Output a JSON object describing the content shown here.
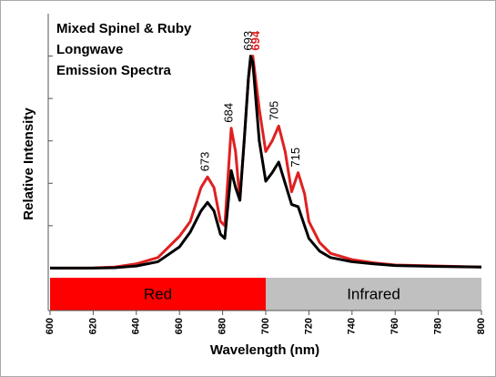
{
  "chart_data": {
    "type": "line",
    "title_lines": [
      "Mixed Spinel & Ruby",
      "Longwave",
      "Emission Spectra"
    ],
    "xlabel": "Wavelength (nm)",
    "ylabel": "Relative Intensity",
    "x": [
      600,
      620,
      630,
      640,
      650,
      660,
      665,
      670,
      673,
      676,
      679,
      681,
      684,
      686,
      688,
      690,
      692,
      693,
      694,
      697,
      700,
      703,
      706,
      709,
      712,
      715,
      718,
      720,
      725,
      730,
      740,
      750,
      760,
      780,
      800
    ],
    "series": [
      {
        "color": "#e02020",
        "values": [
          0,
          0.001,
          0.005,
          0.02,
          0.05,
          0.15,
          0.22,
          0.38,
          0.43,
          0.38,
          0.22,
          0.2,
          0.66,
          0.55,
          0.32,
          0.6,
          0.9,
          0.97,
          1.0,
          0.75,
          0.55,
          0.6,
          0.67,
          0.55,
          0.36,
          0.45,
          0.35,
          0.22,
          0.12,
          0.07,
          0.04,
          0.025,
          0.015,
          0.01,
          0.005
        ]
      },
      {
        "color": "#000000",
        "values": [
          0,
          0,
          0.002,
          0.01,
          0.03,
          0.1,
          0.17,
          0.27,
          0.31,
          0.27,
          0.16,
          0.14,
          0.46,
          0.38,
          0.32,
          0.6,
          0.9,
          1.0,
          0.97,
          0.6,
          0.41,
          0.45,
          0.5,
          0.4,
          0.3,
          0.29,
          0.2,
          0.14,
          0.08,
          0.05,
          0.03,
          0.02,
          0.012,
          0.008,
          0.005
        ]
      }
    ],
    "annotations": [
      {
        "x": 673,
        "color": "#000000"
      },
      {
        "x": 684,
        "color": "#000000"
      },
      {
        "x": 693,
        "color": "#000000"
      },
      {
        "x": 694,
        "color": "#e02020"
      },
      {
        "x": 705,
        "color": "#000000"
      },
      {
        "x": 715,
        "color": "#000000"
      }
    ],
    "bands": [
      {
        "label": "Red",
        "from": 600,
        "to": 700,
        "color": "#ff0000"
      },
      {
        "label": "Infrared",
        "from": 700,
        "to": 800,
        "color": "#c0c0c0"
      }
    ],
    "xlim": [
      600,
      800
    ],
    "xticks": [
      600,
      620,
      640,
      660,
      680,
      700,
      720,
      740,
      760,
      780,
      800
    ],
    "ylim": [
      -0.2,
      1.2
    ],
    "yticks": [
      0.2,
      0.4,
      0.6,
      0.8,
      1.0
    ]
  }
}
